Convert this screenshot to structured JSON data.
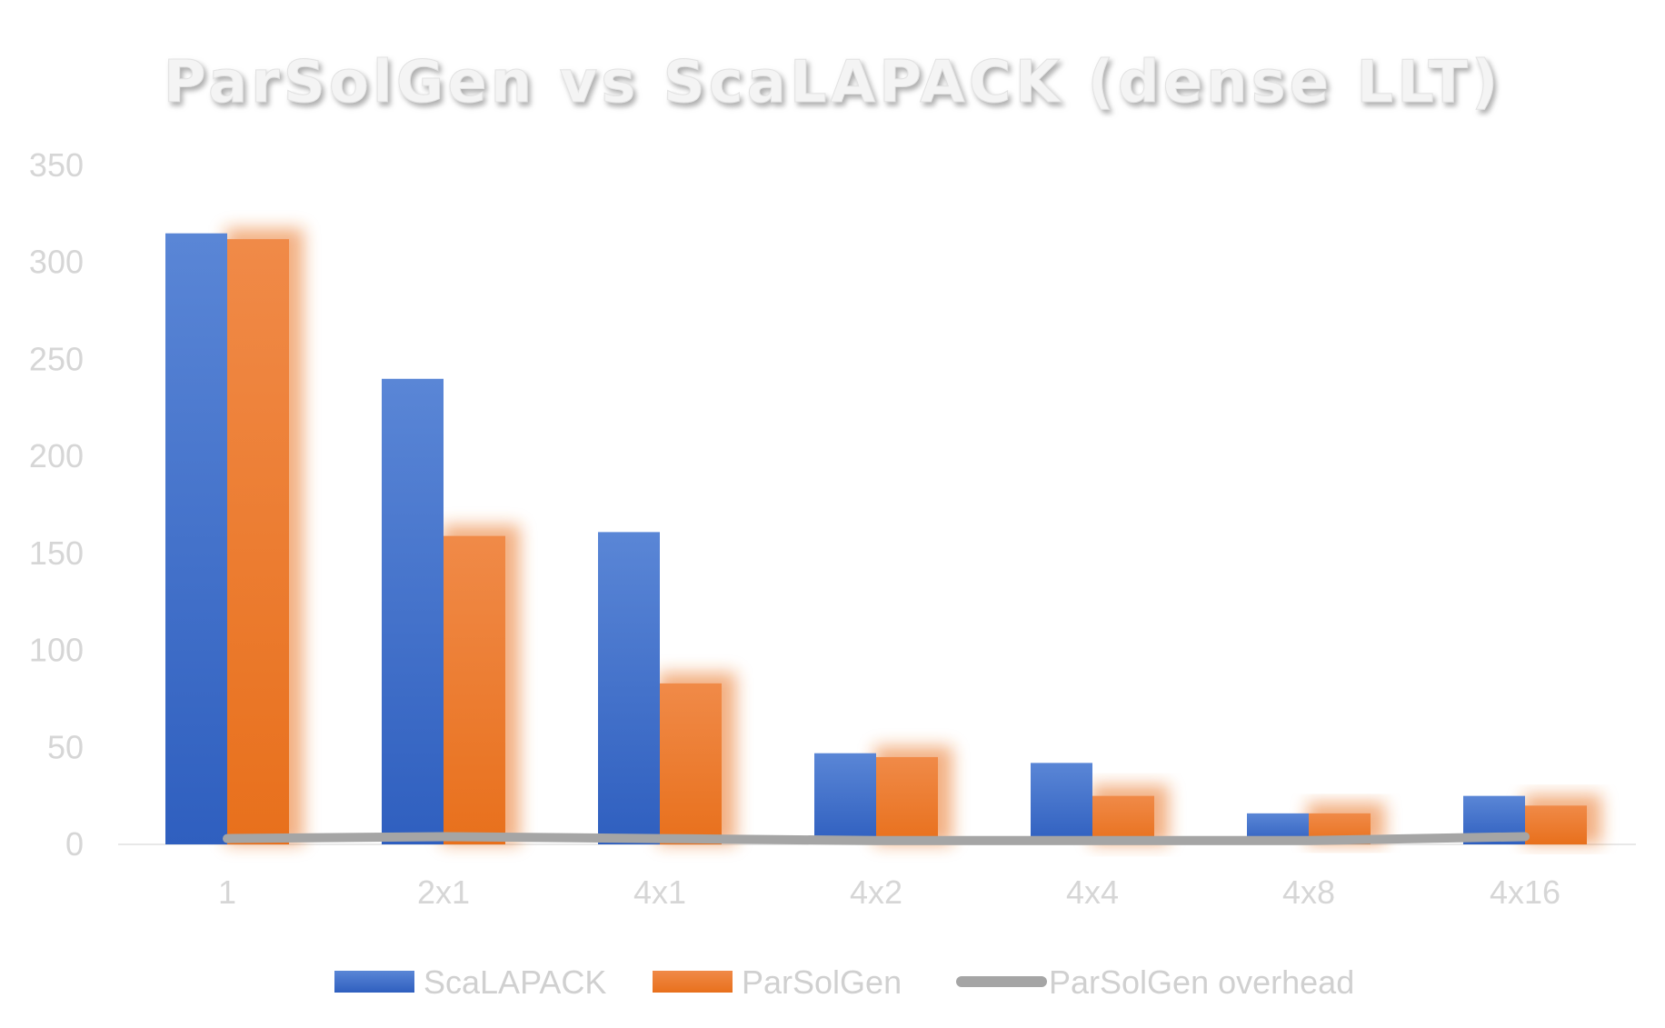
{
  "chart_data": {
    "type": "bar",
    "title": "ParSolGen vs ScaLAPACK (dense LLT)",
    "categories": [
      "1",
      "2x1",
      "4x1",
      "4x2",
      "4x4",
      "4x8",
      "4x16"
    ],
    "series": [
      {
        "name": "ScaLAPACK",
        "kind": "bar",
        "color": "#4472C4",
        "values": [
          315,
          240,
          161,
          47,
          42,
          16,
          25
        ]
      },
      {
        "name": "ParSolGen",
        "kind": "bar",
        "color": "#ED7D31",
        "values": [
          312,
          159,
          83,
          45,
          25,
          16,
          20
        ]
      },
      {
        "name": "ParSolGen overhead",
        "kind": "line",
        "color": "#A5A5A5",
        "values": [
          3,
          4,
          3,
          2,
          2,
          2,
          4
        ]
      }
    ],
    "ylim": [
      0,
      350
    ],
    "yticks": [
      "0",
      "50",
      "100",
      "150",
      "200",
      "250",
      "300",
      "350"
    ],
    "legend_position": "bottom",
    "grid": false
  }
}
